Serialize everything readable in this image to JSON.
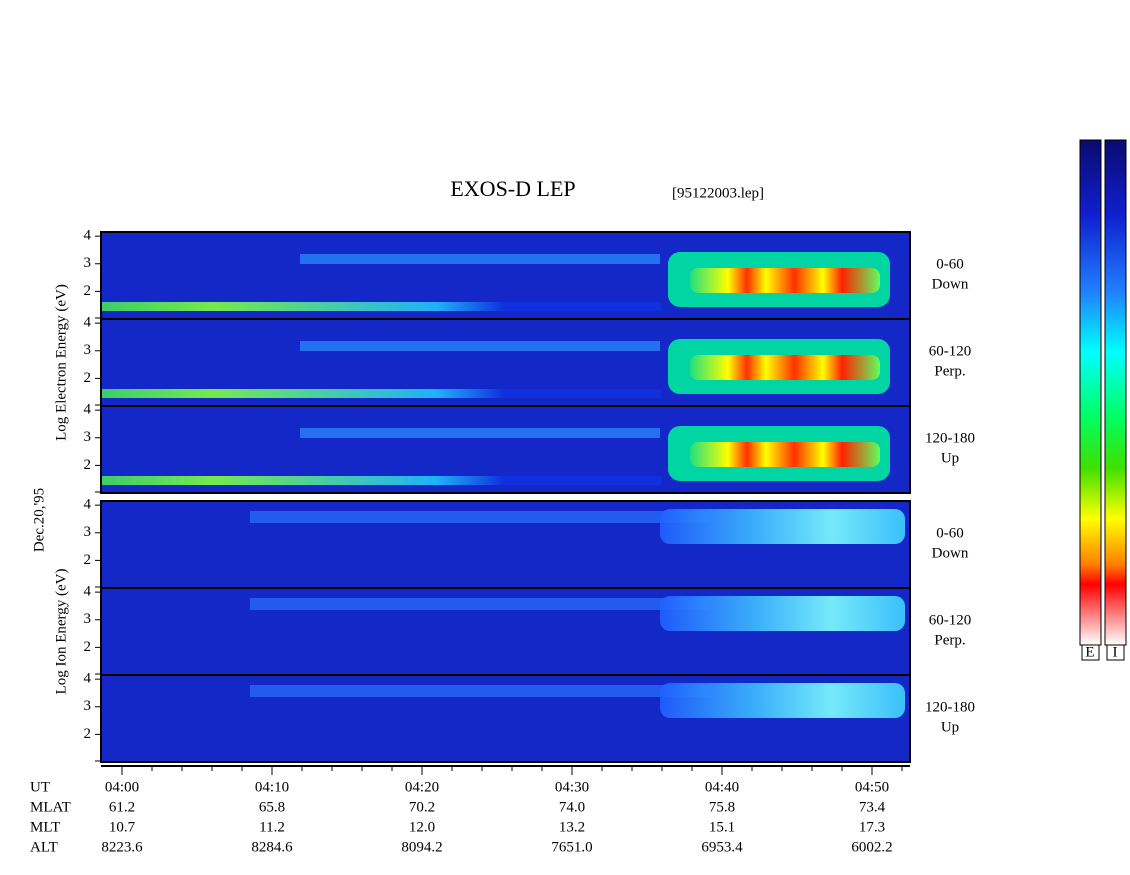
{
  "title": "EXOS-D LEP",
  "file": "[95122003.lep]",
  "date": "Dec.20,'95",
  "groups": [
    {
      "label": "Log Electron Energy (eV)",
      "species": "electron",
      "panels": [
        {
          "angle": "0-60",
          "direction": "Down",
          "ylim": [
            1,
            4.15
          ],
          "yticks": [
            2,
            3,
            4
          ]
        },
        {
          "angle": "60-120",
          "direction": "Perp.",
          "ylim": [
            1,
            4.15
          ],
          "yticks": [
            2,
            3,
            4
          ]
        },
        {
          "angle": "120-180",
          "direction": "Up",
          "ylim": [
            1,
            4.15
          ],
          "yticks": [
            2,
            3,
            4
          ]
        }
      ]
    },
    {
      "label": "Log Ion Energy (eV)",
      "species": "ion",
      "panels": [
        {
          "angle": "0-60",
          "direction": "Down",
          "ylim": [
            1,
            4.15
          ],
          "yticks": [
            2,
            3,
            4
          ]
        },
        {
          "angle": "60-120",
          "direction": "Perp.",
          "ylim": [
            1,
            4.15
          ],
          "yticks": [
            2,
            3,
            4
          ]
        },
        {
          "angle": "120-180",
          "direction": "Up",
          "ylim": [
            1,
            4.15
          ],
          "yticks": [
            2,
            3,
            4
          ]
        }
      ]
    }
  ],
  "ephemeris": [
    {
      "name": "UT",
      "values": [
        "04:00",
        "04:10",
        "04:20",
        "04:30",
        "04:40",
        "04:50"
      ]
    },
    {
      "name": "MLAT",
      "values": [
        "61.2",
        "65.8",
        "70.2",
        "74.0",
        "75.8",
        "73.4"
      ]
    },
    {
      "name": "MLT",
      "values": [
        "10.7",
        "11.2",
        "12.0",
        "13.2",
        "15.1",
        "17.3"
      ]
    },
    {
      "name": "ALT",
      "values": [
        "8223.6",
        "8284.6",
        "8094.2",
        "7651.0",
        "6953.4",
        "6002.2"
      ]
    }
  ],
  "colorbars": [
    "E",
    "I"
  ]
}
